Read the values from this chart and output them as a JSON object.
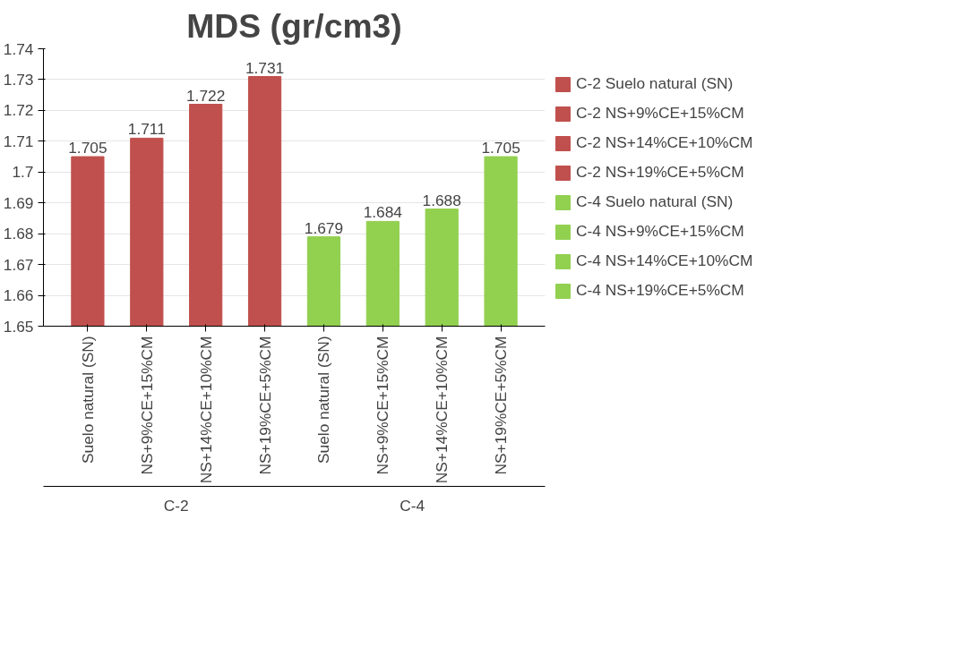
{
  "chart_data": {
    "type": "bar",
    "title": "MDS (gr/cm3)",
    "categories": [
      "Suelo natural (SN)",
      "NS+9%CE+15%CM",
      "NS+14%CE+10%CM",
      "NS+19%CE+5%CM",
      "Suelo natural (SN)",
      "NS+9%CE+15%CM",
      "NS+14%CE+10%CM",
      "NS+19%CE+5%CM"
    ],
    "series": [
      {
        "name": "C-2 Suelo natural (SN)",
        "color": "#c0504d",
        "values": [
          1.705,
          null,
          null,
          null,
          null,
          null,
          null,
          null
        ]
      },
      {
        "name": "C-2 NS+9%CE+15%CM",
        "color": "#c0504d",
        "values": [
          null,
          1.711,
          null,
          null,
          null,
          null,
          null,
          null
        ]
      },
      {
        "name": "C-2 NS+14%CE+10%CM",
        "color": "#c0504d",
        "values": [
          null,
          null,
          1.722,
          null,
          null,
          null,
          null,
          null
        ]
      },
      {
        "name": "C-2 NS+19%CE+5%CM",
        "color": "#c0504d",
        "values": [
          null,
          null,
          null,
          1.731,
          null,
          null,
          null,
          null
        ]
      },
      {
        "name": "C-4 Suelo natural (SN)",
        "color": "#92d050",
        "values": [
          null,
          null,
          null,
          null,
          1.679,
          null,
          null,
          null
        ]
      },
      {
        "name": "C-4 NS+9%CE+15%CM",
        "color": "#92d050",
        "values": [
          null,
          null,
          null,
          null,
          null,
          1.684,
          null,
          null
        ]
      },
      {
        "name": "C-4 NS+14%CE+10%CM",
        "color": "#92d050",
        "values": [
          null,
          null,
          null,
          null,
          null,
          null,
          1.688,
          null
        ]
      },
      {
        "name": "C-4 NS+19%CE+5%CM",
        "color": "#92d050",
        "values": [
          null,
          null,
          null,
          null,
          null,
          null,
          null,
          1.705
        ]
      }
    ],
    "annotations": [
      "C-2",
      "C-4"
    ],
    "ylim": [
      1.65,
      1.74
    ],
    "yticks": [
      1.65,
      1.66,
      1.67,
      1.68,
      1.69,
      1.7,
      1.71,
      1.72,
      1.73,
      1.74
    ],
    "grid": "y",
    "legend": "right",
    "data_labels": true
  }
}
